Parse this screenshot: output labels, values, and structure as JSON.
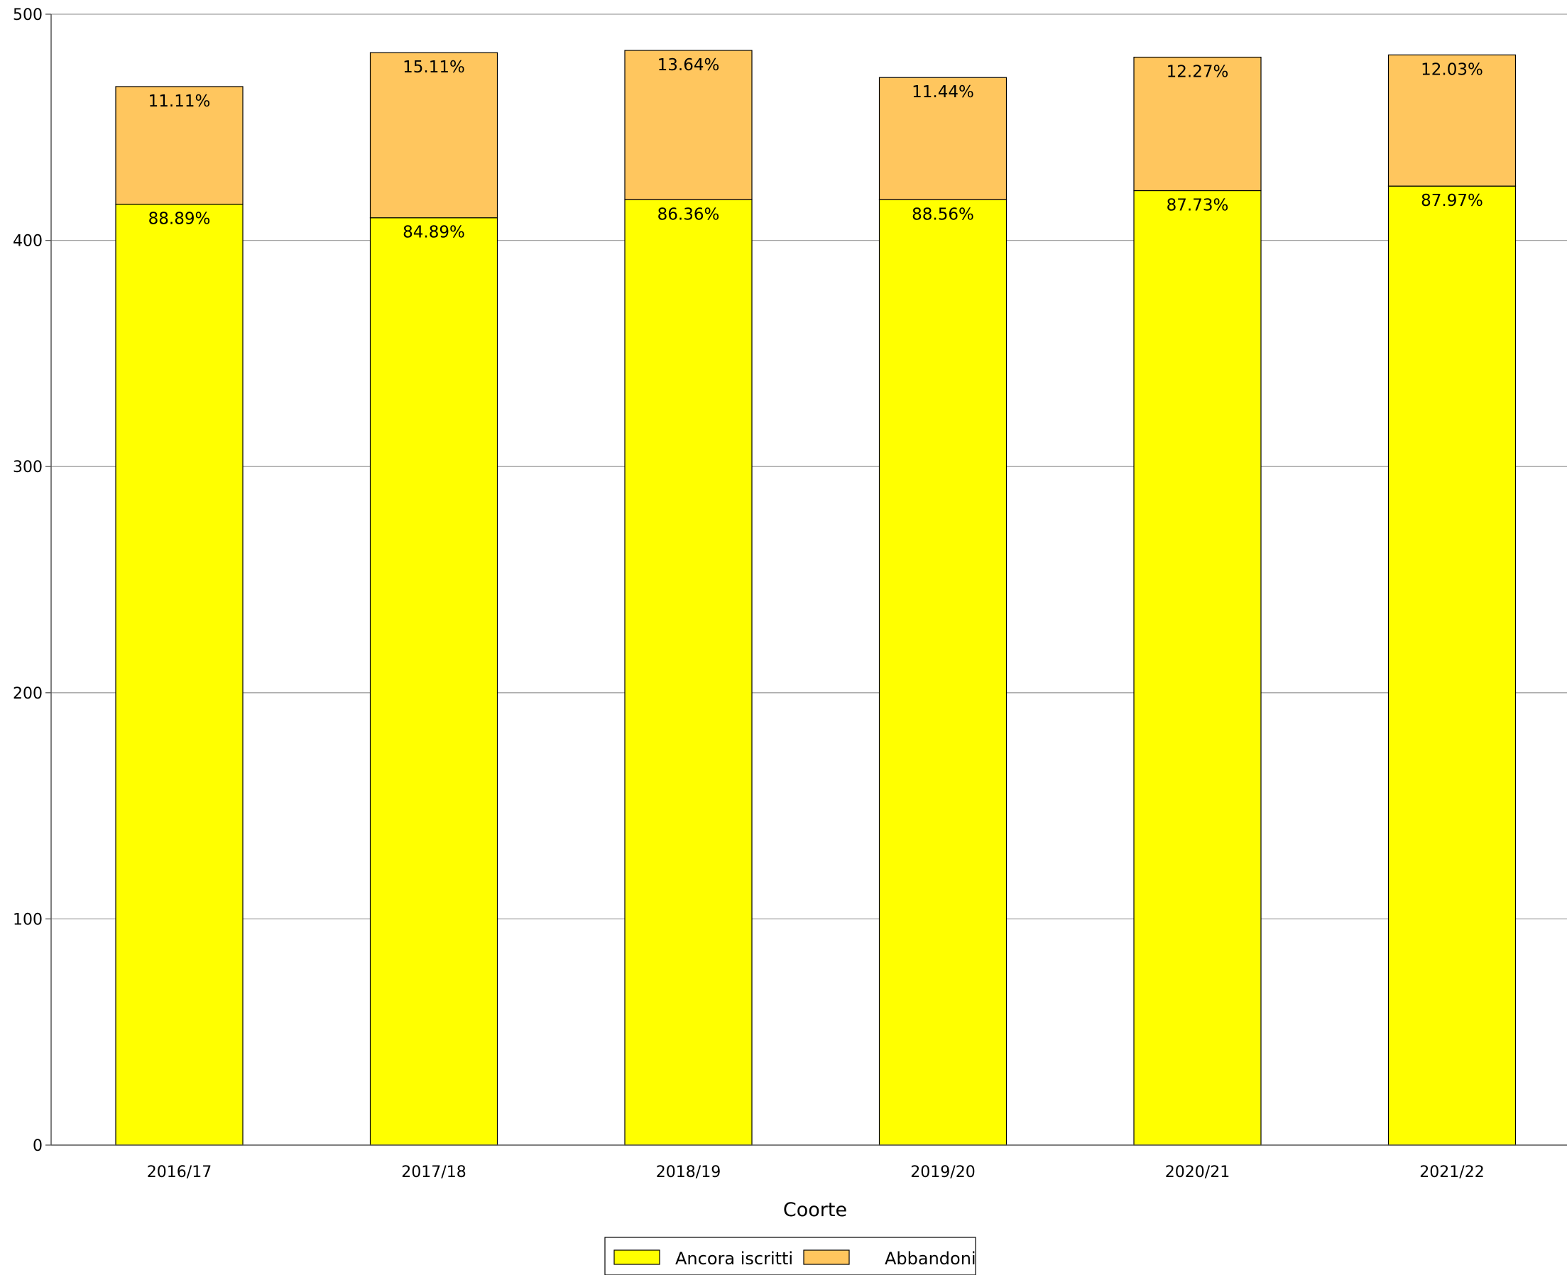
{
  "chart_data": {
    "type": "bar",
    "stacked": true,
    "categories": [
      "2016/17",
      "2017/18",
      "2018/19",
      "2019/20",
      "2020/21",
      "2021/22"
    ],
    "series": [
      {
        "name": "Ancora iscritti",
        "color": "#ffff00",
        "values": [
          416,
          410,
          418,
          418,
          422,
          424
        ],
        "labels": [
          "88.89%",
          "84.89%",
          "86.36%",
          "88.56%",
          "87.73%",
          "87.97%"
        ]
      },
      {
        "name": "Abbandoni",
        "color": "#ffc65e",
        "values": [
          52,
          73,
          66,
          54,
          59,
          58
        ],
        "labels": [
          "11.11%",
          "15.11%",
          "13.64%",
          "11.44%",
          "12.27%",
          "12.03%"
        ]
      }
    ],
    "xlabel": "Coorte",
    "ylabel": "",
    "title": "",
    "ylim": [
      0,
      500
    ],
    "yticks": [
      0,
      100,
      200,
      300,
      400,
      500
    ],
    "grid": true,
    "legend": "bottom-center"
  }
}
